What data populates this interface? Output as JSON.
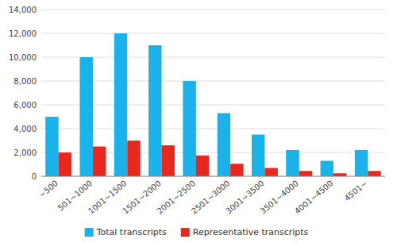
{
  "chart_data": {
    "type": "bar",
    "categories": [
      "~500",
      "501~1000",
      "1001~1500",
      "1501~2000",
      "2001~2500",
      "2501~3000",
      "3001~3500",
      "3501~4000",
      "4001~4500",
      "4501~"
    ],
    "series": [
      {
        "name": "Total transcripts",
        "color": "#1AB2E8",
        "values": [
          5000,
          10000,
          12000,
          11000,
          8000,
          5300,
          3500,
          2200,
          1300,
          2200
        ]
      },
      {
        "name": "Representative transcripts",
        "color": "#E8281E",
        "values": [
          2000,
          2500,
          3000,
          2600,
          1750,
          1050,
          700,
          450,
          250,
          450
        ]
      }
    ],
    "ylim": [
      0,
      14000
    ],
    "yticks": [
      0,
      {
        "value": 2000,
        "label": "2,000"
      },
      {
        "value": 4000,
        "label": "4,000"
      },
      {
        "value": 6000,
        "label": "6,000"
      },
      {
        "value": 8000,
        "label": "8,000"
      },
      {
        "value": 10000,
        "label": "10,000"
      },
      {
        "value": 12000,
        "label": "12,000"
      },
      {
        "value": 14000,
        "label": "14,000"
      }
    ],
    "grid": true,
    "legend": "bottom"
  }
}
